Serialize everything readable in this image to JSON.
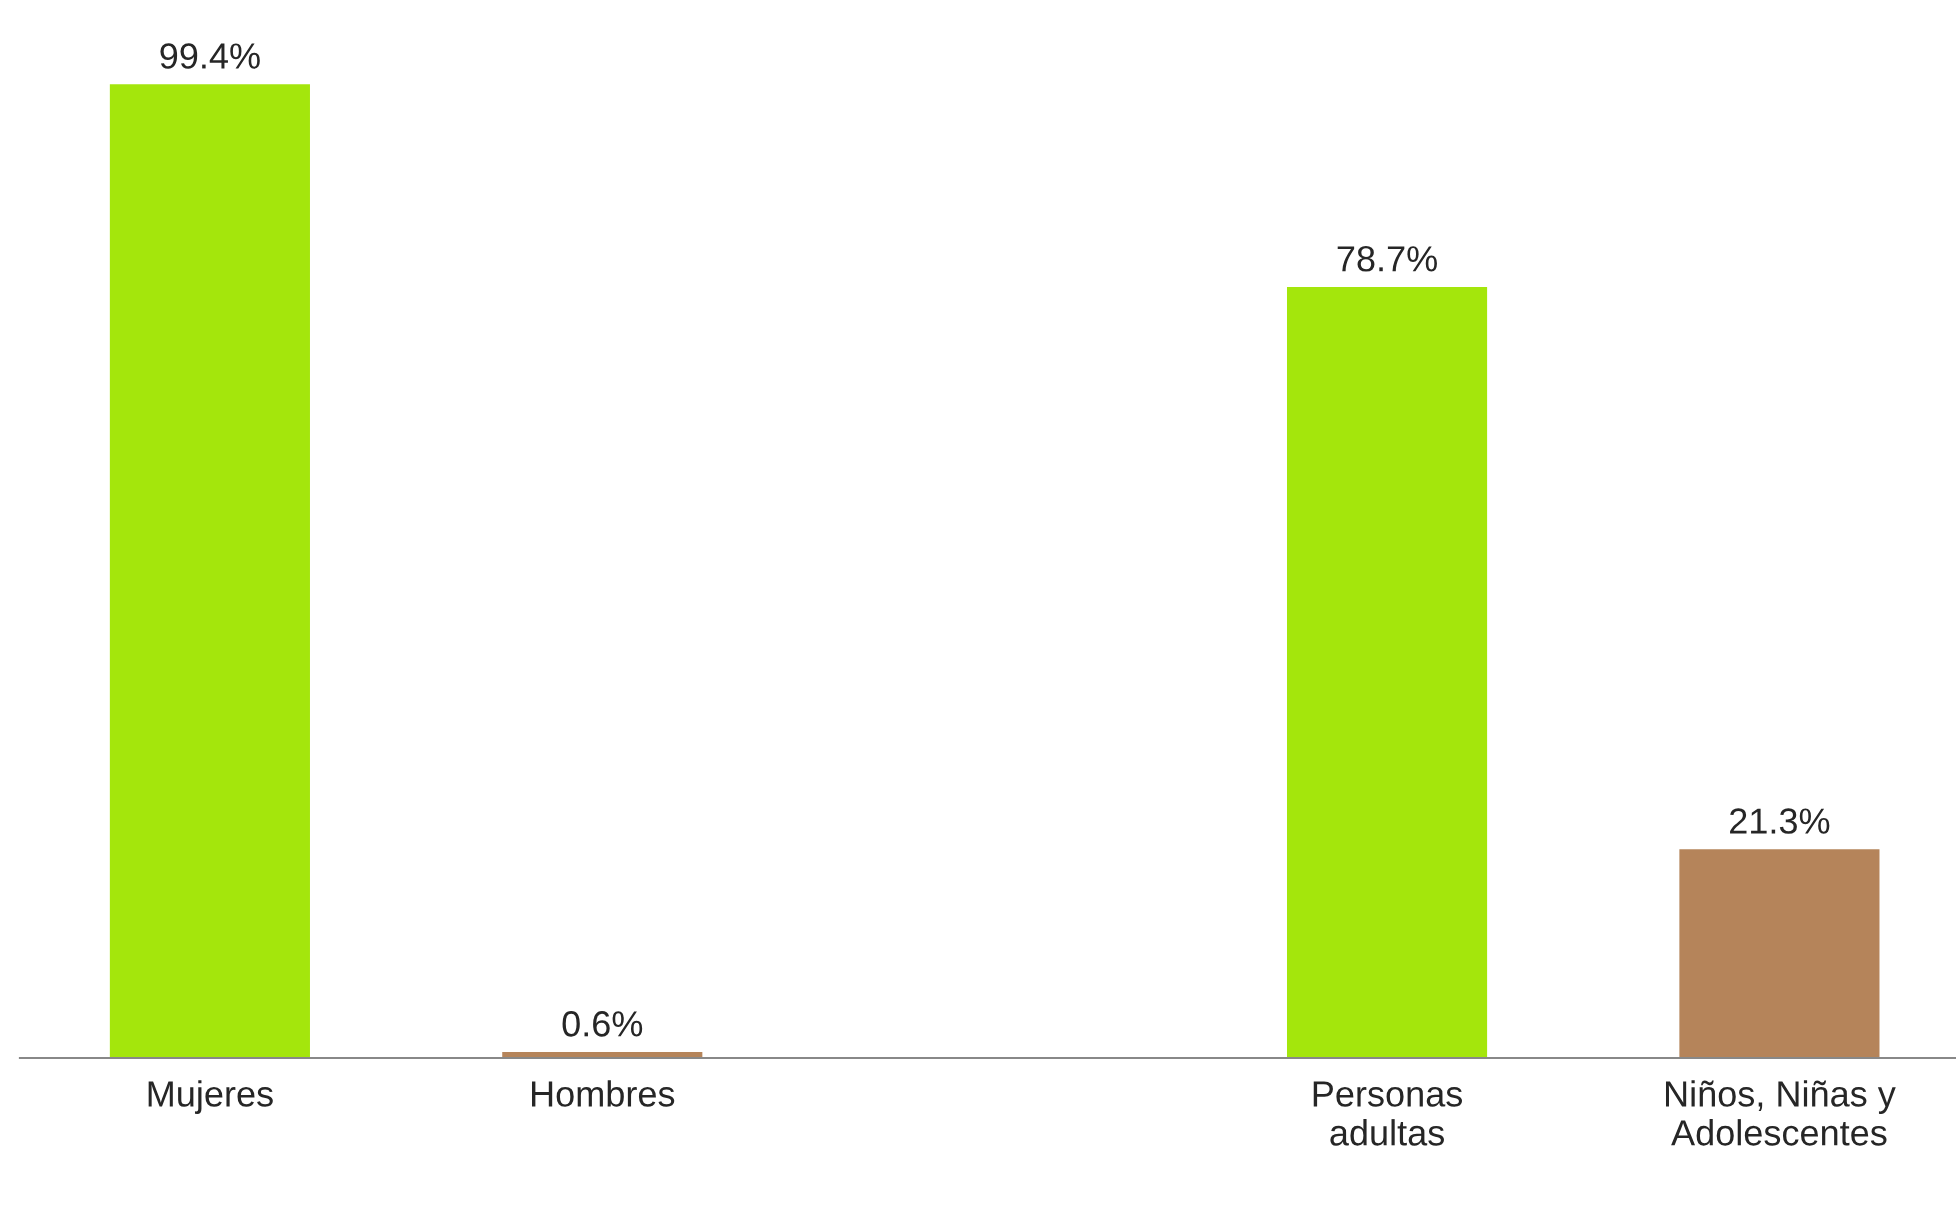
{
  "chart_data": {
    "type": "bar",
    "categories": [
      "Mujeres",
      "Hombres",
      null,
      "Personas\nadultas",
      "Niños, Niñas y\nAdolescentes"
    ],
    "values": [
      99.4,
      0.6,
      null,
      78.7,
      21.3
    ],
    "value_labels": [
      "99.4%",
      "0.6%",
      null,
      "78.7%",
      "21.3%"
    ],
    "colors": [
      "#a4e60c",
      "#b5845a",
      "#a4e60c",
      "#a4e60c",
      "#b5845a"
    ],
    "grid": false,
    "legend": false
  }
}
